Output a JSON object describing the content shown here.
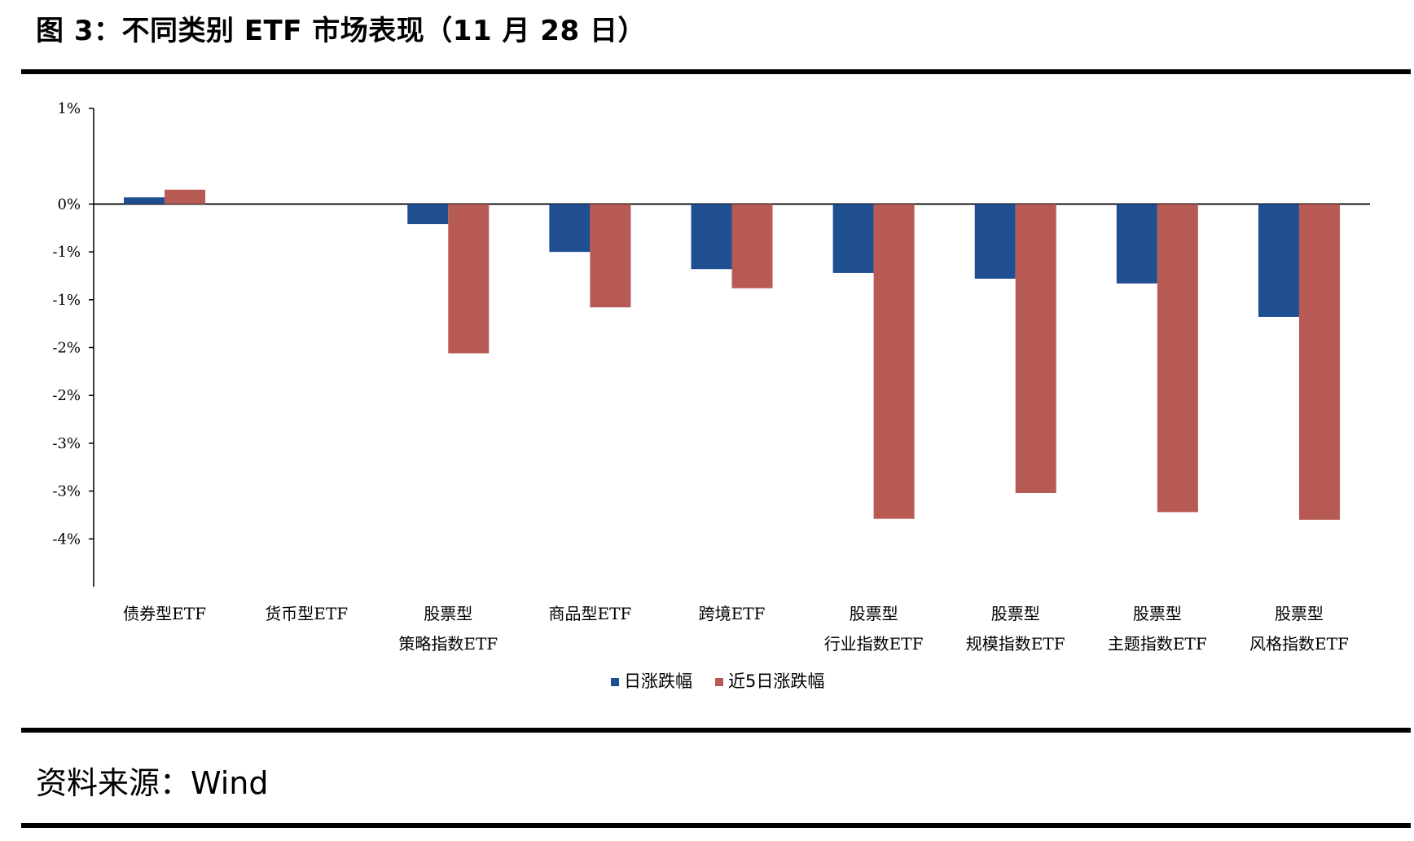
{
  "header": {
    "title": "图 3：不同类别 ETF 市场表现（11 月 28 日）"
  },
  "footer": {
    "source": "资料来源：Wind"
  },
  "chart_data": {
    "type": "bar",
    "title": "",
    "xlabel": "",
    "ylabel": "",
    "ylim": [
      -4,
      1
    ],
    "y_ticks": [
      1,
      0,
      -0.5,
      -1,
      -1.5,
      -2,
      -2.5,
      -3,
      -3.5
    ],
    "y_tick_labels": [
      "1%",
      "0%",
      "-1%",
      "-1%",
      "-2%",
      "-2%",
      "-3%",
      "-3%",
      "-4%"
    ],
    "categories": [
      [
        "债券型ETF"
      ],
      [
        "货币型ETF"
      ],
      [
        "股票型",
        "策略指数ETF"
      ],
      [
        "商品型ETF"
      ],
      [
        "跨境ETF"
      ],
      [
        "股票型",
        "行业指数ETF"
      ],
      [
        "股票型",
        "规模指数ETF"
      ],
      [
        "股票型",
        "主题指数ETF"
      ],
      [
        "股票型",
        "风格指数ETF"
      ]
    ],
    "series": [
      {
        "name": "日涨跌幅",
        "color": "#1f4e91",
        "values": [
          0.07,
          0.0,
          -0.21,
          -0.5,
          -0.68,
          -0.72,
          -0.78,
          -0.83,
          -1.18
        ]
      },
      {
        "name": "近5日涨跌幅",
        "color": "#b85a54",
        "values": [
          0.15,
          0.0,
          -1.56,
          -1.08,
          -0.88,
          -3.29,
          -3.02,
          -3.22,
          -3.3
        ]
      }
    ],
    "grid": false,
    "legend_position": "bottom-center"
  }
}
